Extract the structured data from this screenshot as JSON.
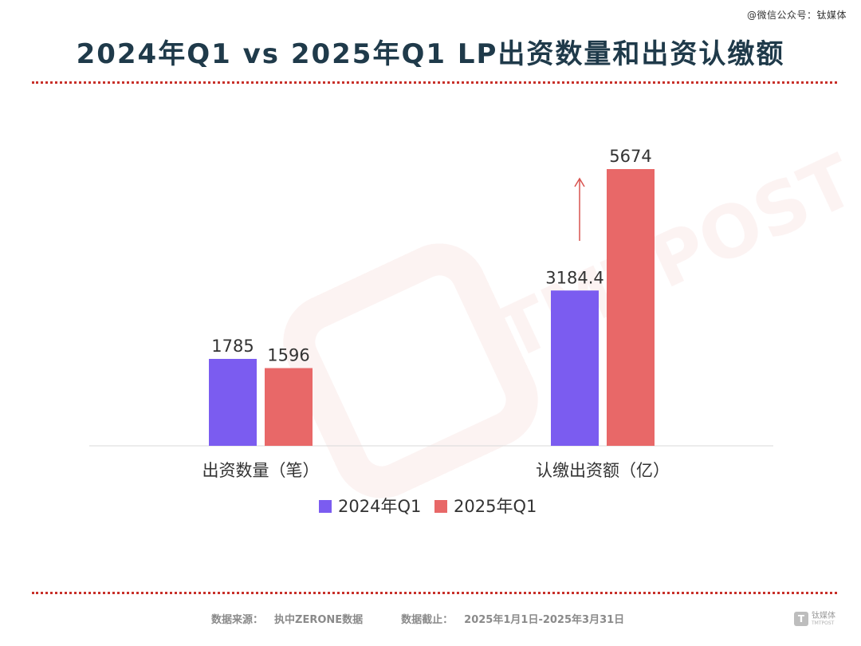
{
  "credit": "@微信公众号：钛媒体",
  "footer": {
    "source_label": "数据来源：",
    "source_value": "执中ZERONE数据",
    "cutoff_label": "数据截止：",
    "cutoff_value": "2025年1月1日-2025年3月31日"
  },
  "logo": {
    "mark": "T",
    "name": "钛媒体",
    "sub": "TMTPOST"
  },
  "colors": {
    "series_2024": "#7b5cf0",
    "series_2025": "#e86868",
    "title": "#1f3a4a",
    "dots": "#c8302a",
    "arrow": "#d9534f"
  },
  "chart_data": {
    "type": "bar",
    "title": "2024年Q1 vs 2025年Q1 LP出资数量和出资认缴额",
    "categories": [
      "出资数量（笔）",
      "认缴出资额（亿）"
    ],
    "series": [
      {
        "name": "2024年Q1",
        "values": [
          1785,
          3184.4
        ],
        "labels": [
          "1785",
          "3184.4"
        ]
      },
      {
        "name": "2025年Q1",
        "values": [
          1596,
          5674
        ],
        "labels": [
          "1596",
          "5674"
        ]
      }
    ],
    "scale_note": "each category group drawn on its own scale",
    "group_max": [
      1785,
      5674
    ],
    "grid": false,
    "legend": "bottom",
    "annotation": "up-arrow between 2024年Q1 and 2025年Q1 bars in 认缴出资额 group"
  }
}
